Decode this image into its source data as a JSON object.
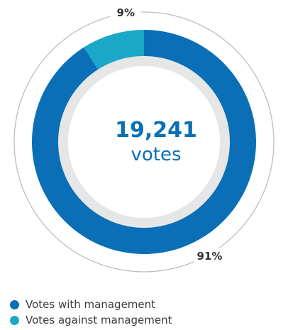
{
  "chart_data": {
    "type": "pie",
    "style": "donut",
    "center_value": "19,241",
    "center_label": "votes",
    "series": [
      {
        "name": "Votes with management",
        "value": 91,
        "label": "91%",
        "color": "#0a6fb7"
      },
      {
        "name": "Votes against management",
        "value": 9,
        "label": "9%",
        "color": "#1ba8c8"
      }
    ]
  },
  "colors": {
    "center_value": "#0a6fb7",
    "inner_ring": "#e6e6e6",
    "outer_ring": "#bdbdbd",
    "label_text": "#333333"
  }
}
